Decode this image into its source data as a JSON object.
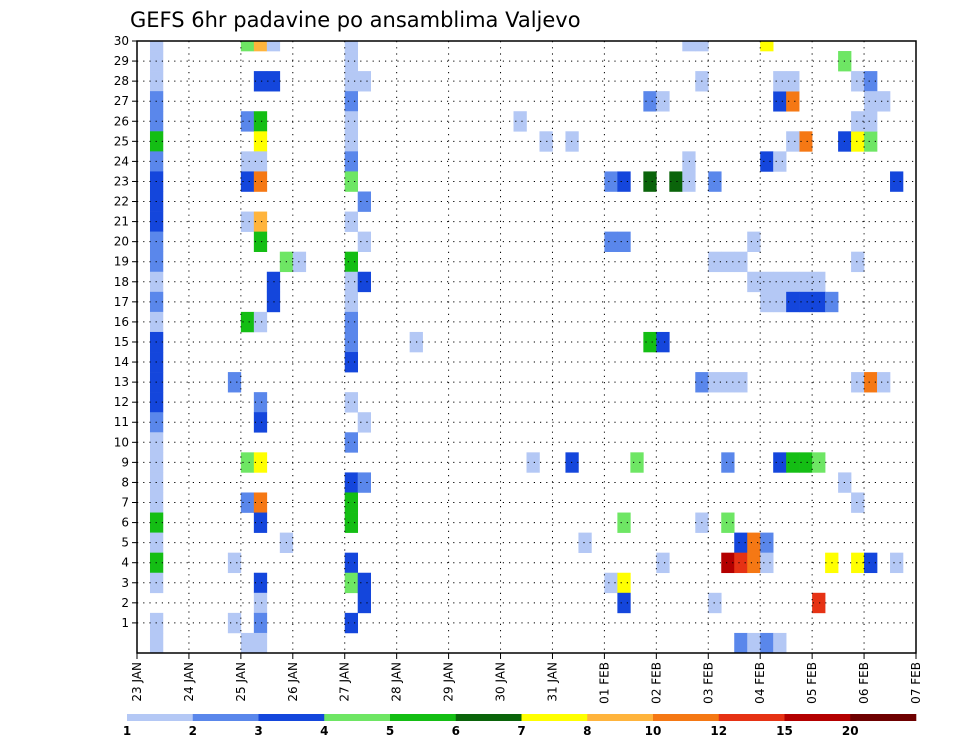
{
  "chart_data": {
    "type": "heatmap",
    "title": "GEFS 6hr padavine po ansamblima Valjevo",
    "xlabel": "",
    "ylabel": "",
    "x_ticks": [
      "23 JAN",
      "24 JAN",
      "25 JAN",
      "26 JAN",
      "27 JAN",
      "28 JAN",
      "29 JAN",
      "30 JAN",
      "31 JAN",
      "01 FEB",
      "02 FEB",
      "03 FEB",
      "04 FEB",
      "05 FEB",
      "06 FEB",
      "07 FEB"
    ],
    "x_range_days": [
      0,
      15
    ],
    "y_range": [
      0,
      30
    ],
    "y_ticks": [
      1,
      2,
      3,
      4,
      5,
      6,
      7,
      8,
      9,
      10,
      11,
      12,
      13,
      14,
      15,
      16,
      17,
      18,
      19,
      20,
      21,
      22,
      23,
      24,
      25,
      26,
      27,
      28,
      29,
      30
    ],
    "grid": true,
    "colorbar": {
      "boundaries": [
        "1",
        "2",
        "3",
        "4",
        "5",
        "6",
        "7",
        "8",
        "10",
        "12",
        "15",
        "20"
      ],
      "colors": [
        "#b4c8f5",
        "#5a87eb",
        "#1446dc",
        "#6ee664",
        "#14be14",
        "#0a640a",
        "#ffff00",
        "#ffb43c",
        "#f57814",
        "#e63214",
        "#b40000",
        "#6e0000"
      ]
    },
    "cells": [
      [
        1,
        30,
        1
      ],
      [
        1,
        29,
        1
      ],
      [
        1,
        28,
        1
      ],
      [
        1,
        27,
        2
      ],
      [
        1,
        26,
        2
      ],
      [
        1,
        25,
        5
      ],
      [
        1,
        24,
        2
      ],
      [
        1,
        23,
        3
      ],
      [
        1,
        22,
        3
      ],
      [
        1,
        21,
        3
      ],
      [
        1,
        20,
        2
      ],
      [
        1,
        19,
        2
      ],
      [
        1,
        18,
        1
      ],
      [
        1,
        17,
        2
      ],
      [
        1,
        16,
        1
      ],
      [
        1,
        15,
        3
      ],
      [
        1,
        14,
        3
      ],
      [
        1,
        13,
        3
      ],
      [
        1,
        12,
        3
      ],
      [
        1,
        11,
        2
      ],
      [
        1,
        10,
        1
      ],
      [
        1,
        9,
        1
      ],
      [
        1,
        8,
        1
      ],
      [
        1,
        7,
        1
      ],
      [
        1,
        6,
        5
      ],
      [
        1,
        5,
        1
      ],
      [
        1,
        4,
        5
      ],
      [
        1,
        3,
        1
      ],
      [
        1,
        1,
        1
      ],
      [
        1,
        0,
        1
      ],
      [
        8,
        30,
        4
      ],
      [
        9,
        30,
        8
      ],
      [
        10,
        30,
        1
      ],
      [
        9,
        28,
        3
      ],
      [
        10,
        28,
        3
      ],
      [
        8,
        26,
        2
      ],
      [
        9,
        26,
        5
      ],
      [
        9,
        25,
        7
      ],
      [
        8,
        24,
        1
      ],
      [
        9,
        24,
        1
      ],
      [
        8,
        23,
        3
      ],
      [
        9,
        23,
        9
      ],
      [
        8,
        21,
        1
      ],
      [
        9,
        21,
        8
      ],
      [
        9,
        20,
        5
      ],
      [
        11,
        19,
        4
      ],
      [
        12,
        19,
        1
      ],
      [
        10,
        18,
        3
      ],
      [
        10,
        17,
        3
      ],
      [
        8,
        16,
        5
      ],
      [
        9,
        16,
        1
      ],
      [
        7,
        13,
        2
      ],
      [
        9,
        12,
        2
      ],
      [
        9,
        11,
        3
      ],
      [
        8,
        9,
        4
      ],
      [
        9,
        9,
        7
      ],
      [
        8,
        7,
        2
      ],
      [
        9,
        7,
        9
      ],
      [
        9,
        6,
        3
      ],
      [
        11,
        5,
        1
      ],
      [
        7,
        4,
        1
      ],
      [
        9,
        3,
        3
      ],
      [
        9,
        2,
        1
      ],
      [
        7,
        1,
        1
      ],
      [
        9,
        1,
        2
      ],
      [
        8,
        0,
        1
      ],
      [
        9,
        0,
        1
      ],
      [
        16,
        30,
        1
      ],
      [
        16,
        29,
        1
      ],
      [
        16,
        28,
        1
      ],
      [
        17,
        28,
        1
      ],
      [
        16,
        27,
        2
      ],
      [
        16,
        26,
        1
      ],
      [
        16,
        25,
        1
      ],
      [
        16,
        24,
        2
      ],
      [
        16,
        23,
        4
      ],
      [
        17,
        22,
        2
      ],
      [
        16,
        21,
        1
      ],
      [
        17,
        20,
        1
      ],
      [
        16,
        19,
        5
      ],
      [
        16,
        18,
        1
      ],
      [
        17,
        18,
        3
      ],
      [
        16,
        17,
        1
      ],
      [
        16,
        16,
        2
      ],
      [
        16,
        15,
        2
      ],
      [
        16,
        14,
        3
      ],
      [
        16,
        12,
        1
      ],
      [
        17,
        11,
        1
      ],
      [
        16,
        10,
        2
      ],
      [
        16,
        8,
        3
      ],
      [
        17,
        8,
        2
      ],
      [
        16,
        7,
        5
      ],
      [
        16,
        6,
        5
      ],
      [
        16,
        4,
        3
      ],
      [
        16,
        3,
        4
      ],
      [
        17,
        3,
        3
      ],
      [
        17,
        2,
        3
      ],
      [
        16,
        1,
        3
      ],
      [
        21,
        15,
        1
      ],
      [
        29,
        26,
        1
      ],
      [
        31,
        25,
        1
      ],
      [
        33,
        25,
        1
      ],
      [
        30,
        9,
        1
      ],
      [
        33,
        9,
        3
      ],
      [
        34,
        5,
        1
      ],
      [
        36,
        23,
        2
      ],
      [
        37,
        23,
        3
      ],
      [
        39,
        23,
        6
      ],
      [
        41,
        23,
        6
      ],
      [
        42,
        23,
        1
      ],
      [
        36,
        20,
        2
      ],
      [
        37,
        20,
        2
      ],
      [
        39,
        15,
        5
      ],
      [
        40,
        15,
        3
      ],
      [
        38,
        9,
        4
      ],
      [
        37,
        6,
        4
      ],
      [
        40,
        4,
        1
      ],
      [
        36,
        3,
        1
      ],
      [
        37,
        3,
        7
      ],
      [
        37,
        2,
        3
      ],
      [
        42,
        30,
        1
      ],
      [
        43,
        30,
        1
      ],
      [
        43,
        28,
        1
      ],
      [
        39,
        27,
        2
      ],
      [
        40,
        27,
        1
      ],
      [
        42,
        24,
        1
      ],
      [
        44,
        23,
        2
      ],
      [
        44,
        19,
        1
      ],
      [
        45,
        19,
        1
      ],
      [
        46,
        19,
        1
      ],
      [
        43,
        13,
        2
      ],
      [
        44,
        13,
        1
      ],
      [
        45,
        13,
        1
      ],
      [
        46,
        13,
        1
      ],
      [
        43,
        6,
        1
      ],
      [
        45,
        9,
        2
      ],
      [
        44,
        2,
        1
      ],
      [
        45,
        6,
        4
      ],
      [
        46,
        5,
        3
      ],
      [
        47,
        5,
        9
      ],
      [
        48,
        5,
        2
      ],
      [
        45,
        4,
        11
      ],
      [
        46,
        4,
        10
      ],
      [
        47,
        4,
        9
      ],
      [
        48,
        4,
        1
      ],
      [
        46,
        0,
        2
      ],
      [
        47,
        0,
        1
      ],
      [
        48,
        0,
        2
      ],
      [
        49,
        0,
        1
      ],
      [
        48,
        30,
        7
      ],
      [
        49,
        27,
        3
      ],
      [
        50,
        27,
        9
      ],
      [
        49,
        28,
        1
      ],
      [
        50,
        28,
        1
      ],
      [
        48,
        24,
        3
      ],
      [
        49,
        24,
        1
      ],
      [
        47,
        20,
        1
      ],
      [
        47,
        18,
        1
      ],
      [
        48,
        18,
        1
      ],
      [
        49,
        18,
        1
      ],
      [
        50,
        18,
        1
      ],
      [
        51,
        18,
        1
      ],
      [
        52,
        18,
        1
      ],
      [
        48,
        17,
        1
      ],
      [
        49,
        17,
        1
      ],
      [
        50,
        17,
        3
      ],
      [
        51,
        17,
        3
      ],
      [
        52,
        17,
        3
      ],
      [
        53,
        17,
        2
      ],
      [
        49,
        9,
        3
      ],
      [
        50,
        9,
        5
      ],
      [
        51,
        9,
        5
      ],
      [
        52,
        9,
        4
      ],
      [
        51,
        25,
        9
      ],
      [
        50,
        25,
        1
      ],
      [
        52,
        2,
        10
      ],
      [
        54,
        29,
        4
      ],
      [
        53,
        4,
        7
      ],
      [
        54,
        8,
        1
      ],
      [
        54,
        25,
        3
      ],
      [
        55,
        25,
        7
      ],
      [
        56,
        25,
        4
      ],
      [
        55,
        28,
        1
      ],
      [
        56,
        28,
        2
      ],
      [
        56,
        27,
        1
      ],
      [
        57,
        27,
        1
      ],
      [
        55,
        26,
        1
      ],
      [
        56,
        26,
        1
      ],
      [
        55,
        19,
        1
      ],
      [
        55,
        13,
        1
      ],
      [
        56,
        13,
        9
      ],
      [
        57,
        13,
        1
      ],
      [
        55,
        7,
        1
      ],
      [
        55,
        4,
        7
      ],
      [
        56,
        4,
        3
      ],
      [
        58,
        4,
        1
      ],
      [
        58,
        23,
        3
      ]
    ]
  }
}
